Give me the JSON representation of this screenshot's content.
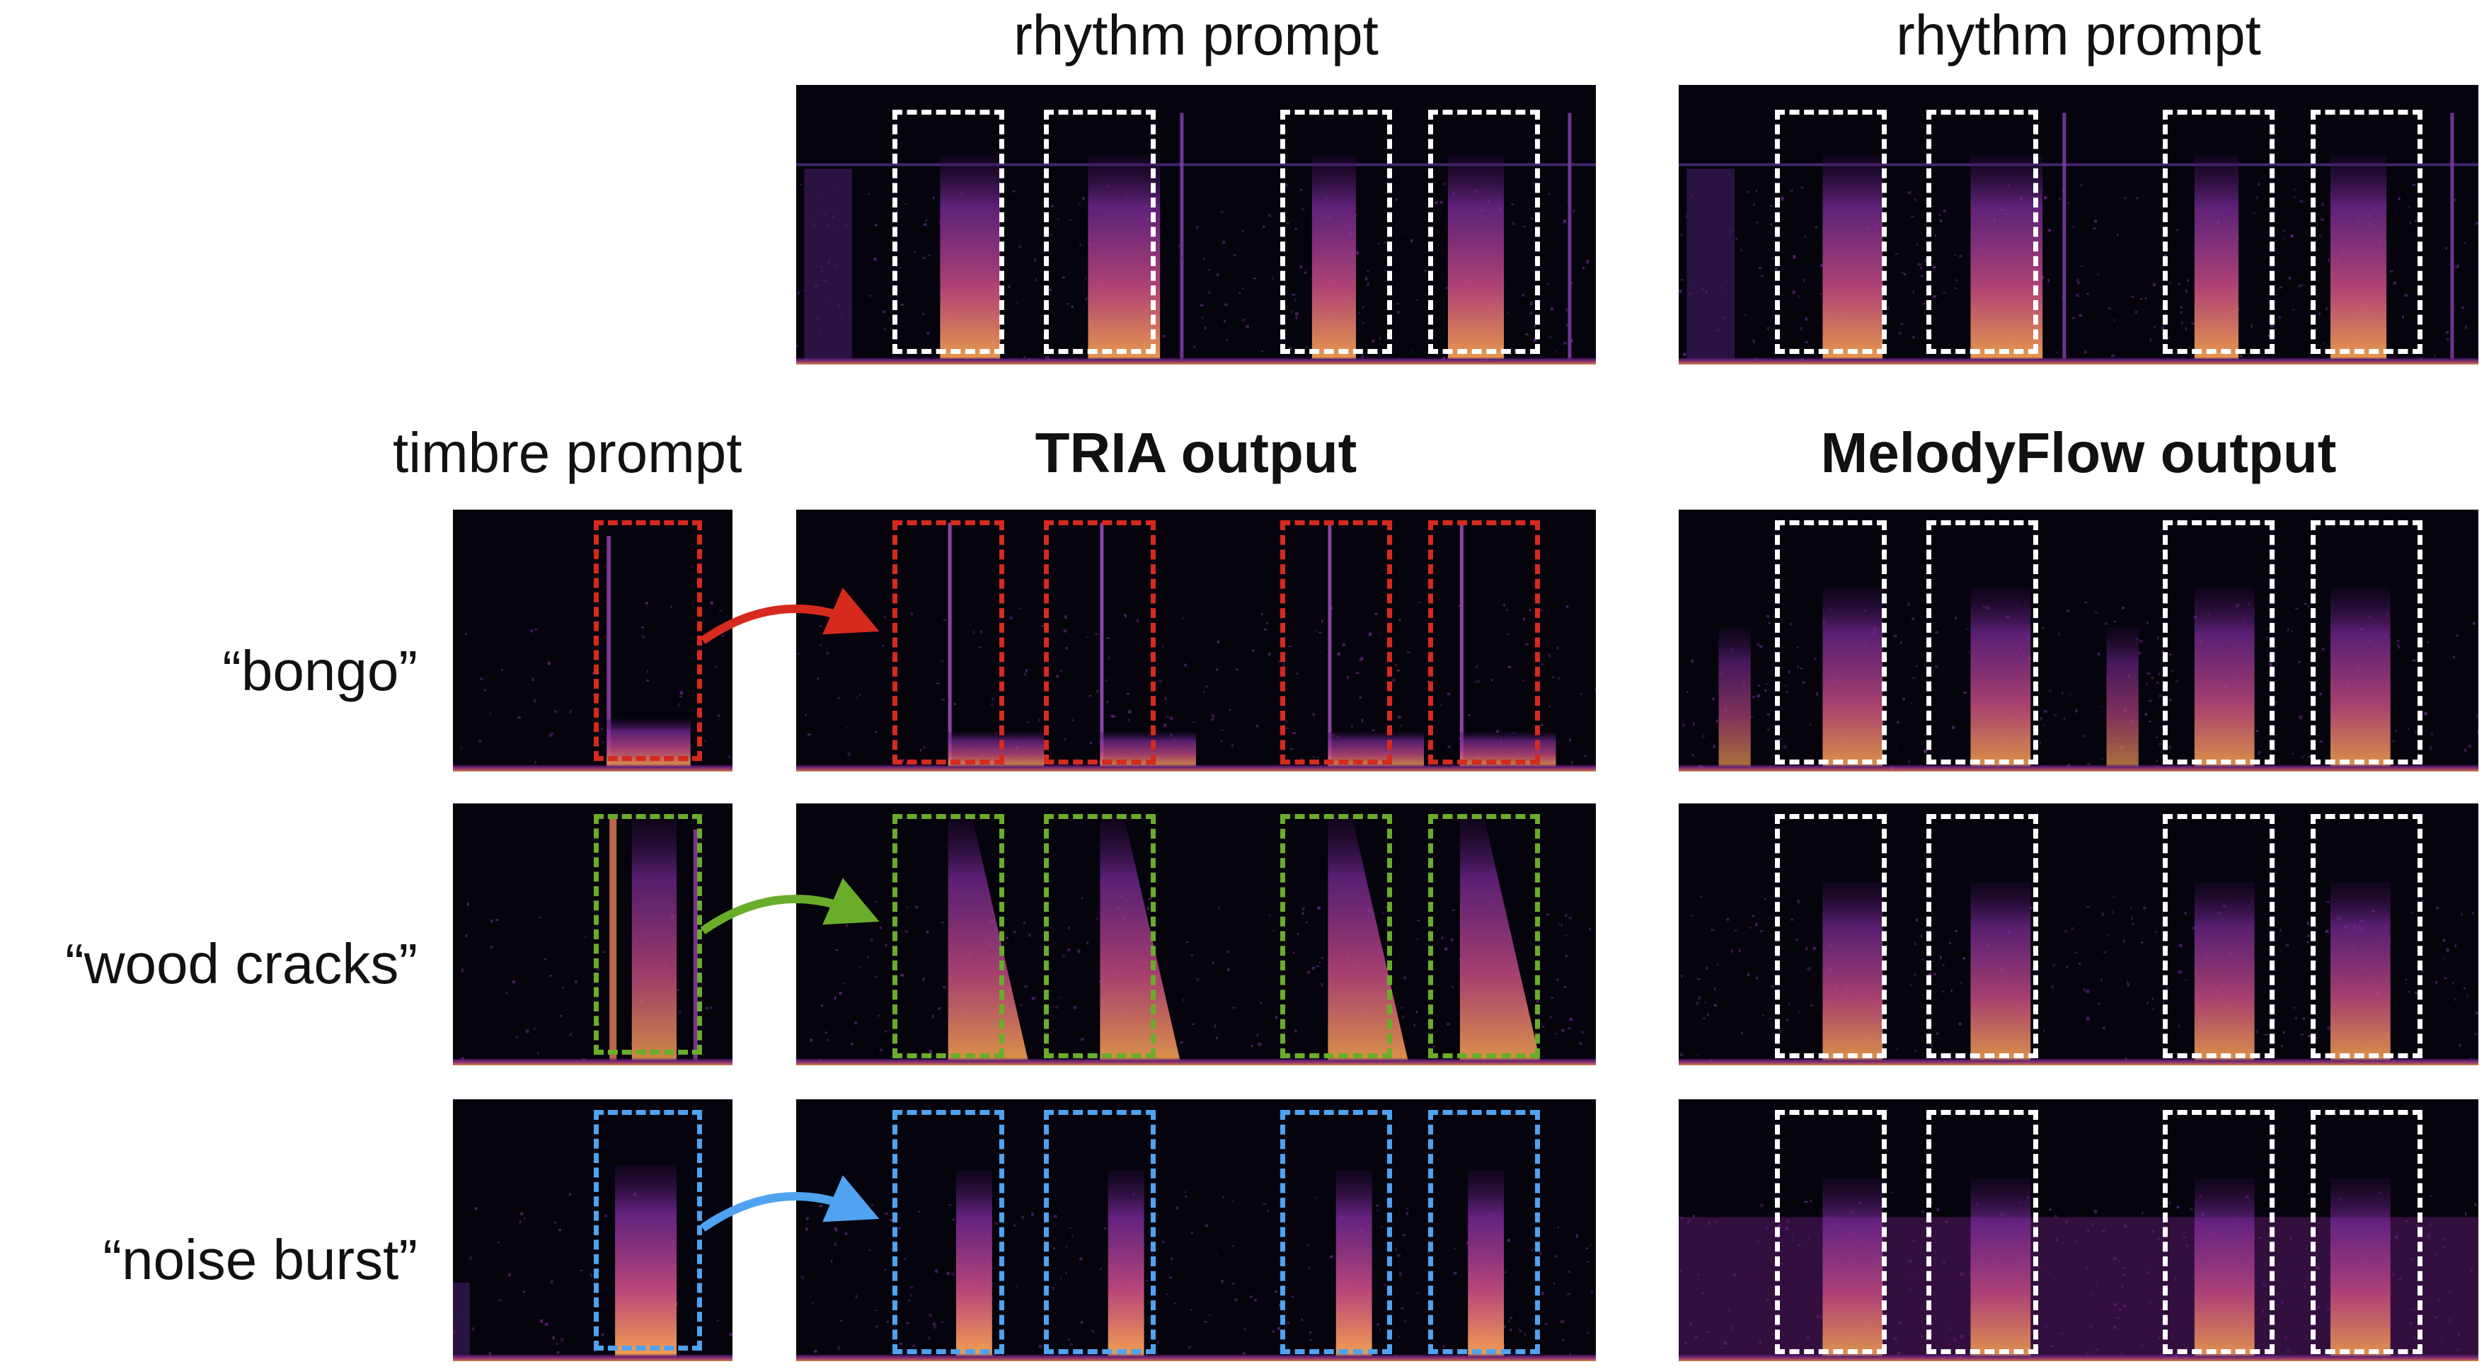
{
  "headers": {
    "rhythm_prompt_tria": "rhythm prompt",
    "rhythm_prompt_melodyflow": "rhythm prompt",
    "timbre_prompt": "timbre prompt",
    "tria_output": "TRIA output",
    "melodyflow_output": "MelodyFlow output"
  },
  "rows": [
    {
      "label": "“bongo”",
      "color": "#d62a1e"
    },
    {
      "label": "“wood cracks”",
      "color": "#6aad2a"
    },
    {
      "label": "“noise burst”",
      "color": "#4fa3f0"
    }
  ],
  "colors": {
    "background": "#ffffff",
    "spectrogram_bg": "#05030c",
    "spectrogram_mid": "#7a2a9a",
    "spectrogram_hot": "#f2a050",
    "rhythm_box": "#ffffff"
  }
}
